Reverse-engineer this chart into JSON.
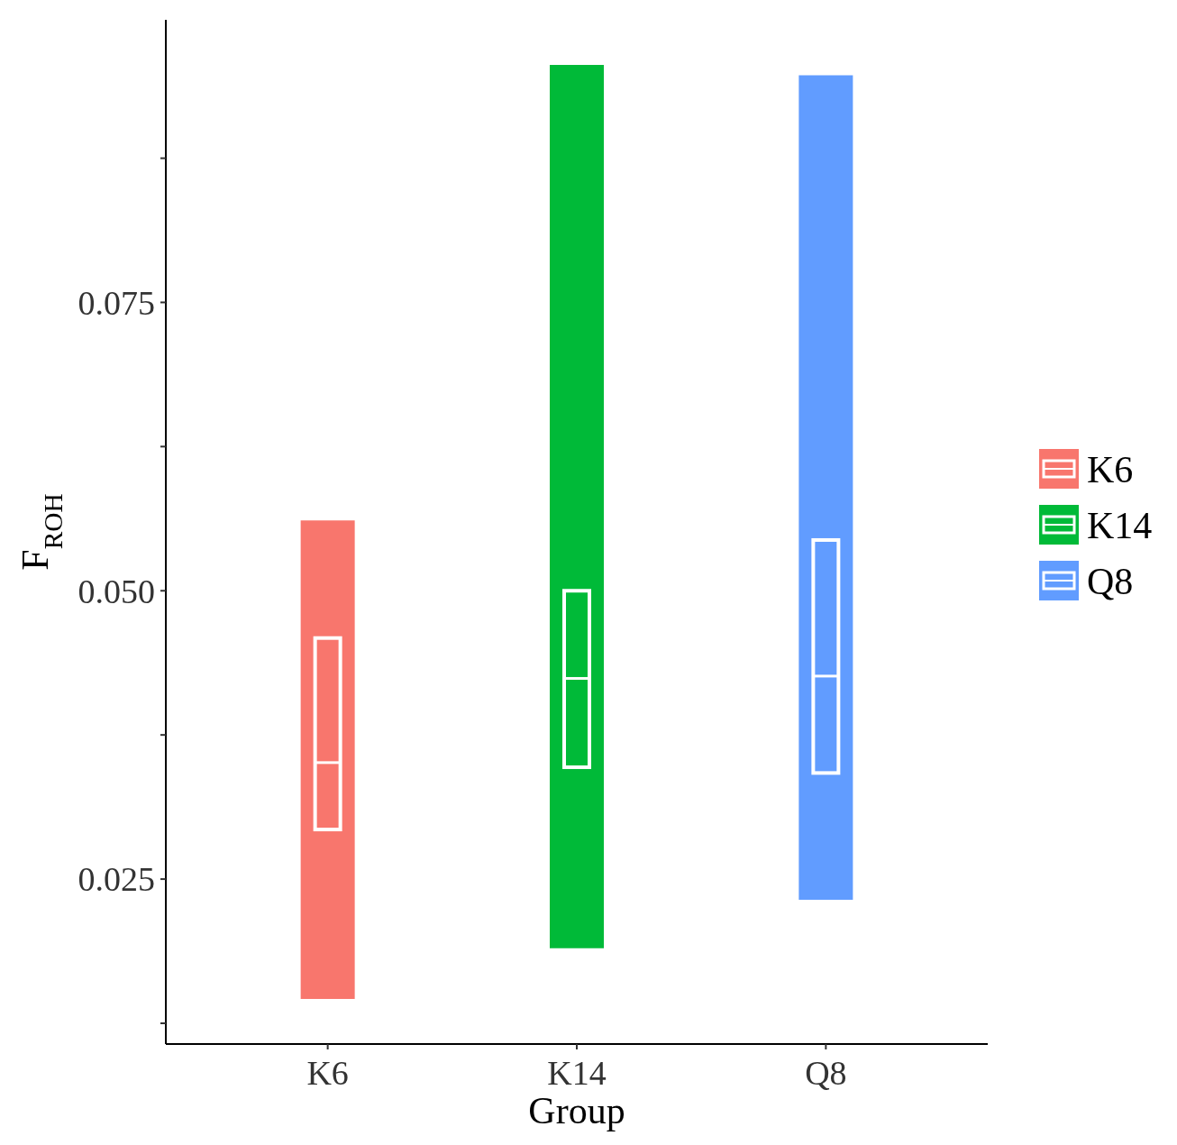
{
  "chart_data": {
    "type": "box",
    "xlabel": "Group",
    "ylabel": "F$_{ROH}$",
    "categories": [
      "K6",
      "K14",
      "Q8"
    ],
    "series": [
      {
        "name": "K6",
        "color": "#f8766d",
        "boxes": [
          {
            "low": 0.0146,
            "q1": 0.0293,
            "median": 0.0351,
            "q3": 0.0459,
            "high": 0.0561
          },
          null,
          null
        ]
      },
      {
        "name": "K14",
        "color": "#00ba38",
        "boxes": [
          null,
          {
            "low": 0.019,
            "q1": 0.0347,
            "median": 0.0424,
            "q3": 0.05,
            "high": 0.0956
          },
          null
        ]
      },
      {
        "name": "Q8",
        "color": "#619cff",
        "boxes": [
          null,
          null,
          {
            "low": 0.0232,
            "q1": 0.0342,
            "median": 0.0426,
            "q3": 0.0544,
            "high": 0.0947
          }
        ]
      }
    ],
    "ylim": [
      0.0107,
      0.0995
    ],
    "yticks": [
      {
        "value": 0.0125,
        "label": null
      },
      {
        "value": 0.025,
        "label": "0.025"
      },
      {
        "value": 0.0375,
        "label": null
      },
      {
        "value": 0.05,
        "label": "0.050"
      },
      {
        "value": 0.0625,
        "label": null
      },
      {
        "value": 0.075,
        "label": "0.075"
      },
      {
        "value": 0.0875,
        "label": null
      }
    ],
    "legend": "right",
    "grid": false
  }
}
